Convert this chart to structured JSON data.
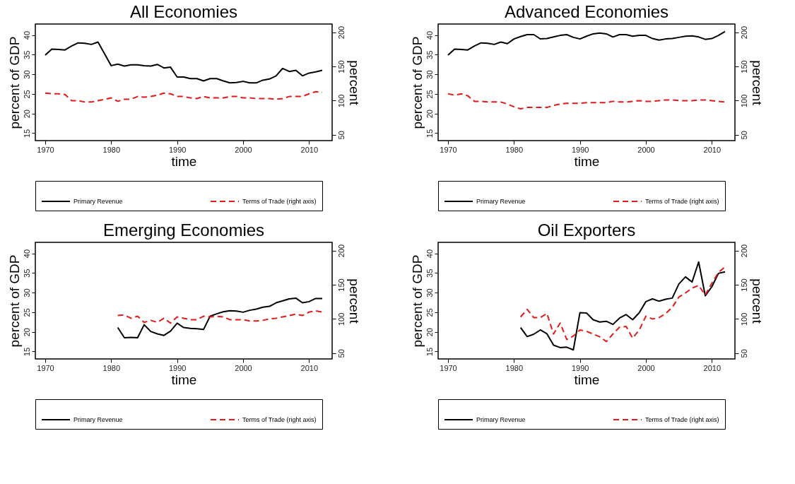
{
  "chart_data": [
    {
      "type": "line",
      "title": "All Economies",
      "xlabel": "time",
      "ylabel": "percent of GDP",
      "y2label": "percent",
      "xlim": [
        1968.5,
        2013.5
      ],
      "xticks": [
        1970,
        1980,
        1990,
        2000,
        2010
      ],
      "ylim": [
        13.1,
        42.8
      ],
      "yticks": [
        15,
        20,
        25,
        30,
        35,
        40
      ],
      "y2lim": [
        41.6,
        211.9
      ],
      "y2ticks": [
        50,
        100,
        150,
        200
      ],
      "legend": "bottom",
      "grid": false,
      "x": [
        1970,
        1971,
        1972,
        1973,
        1974,
        1975,
        1976,
        1977,
        1978,
        1979,
        1980,
        1981,
        1982,
        1983,
        1984,
        1985,
        1986,
        1987,
        1988,
        1989,
        1990,
        1991,
        1992,
        1993,
        1994,
        1995,
        1996,
        1997,
        1998,
        1999,
        2000,
        2001,
        2002,
        2003,
        2004,
        2005,
        2006,
        2007,
        2008,
        2009,
        2010,
        2011,
        2012
      ],
      "series": [
        {
          "name": "Primary Revenue",
          "color": "#000000",
          "line_style": "solid",
          "values": [
            34.9,
            36.4,
            36.3,
            36.2,
            37.2,
            38.0,
            37.9,
            37.6,
            38.2,
            35.2,
            32.2,
            32.6,
            32.1,
            32.4,
            32.4,
            32.2,
            32.1,
            32.5,
            31.6,
            31.8,
            29.3,
            29.3,
            28.9,
            28.9,
            28.3,
            28.9,
            28.9,
            28.3,
            27.8,
            27.9,
            28.2,
            27.8,
            27.8,
            28.5,
            28.8,
            29.6,
            31.5,
            30.7,
            31.0,
            29.6,
            30.3,
            30.6,
            31.0
          ]
        },
        {
          "name": "Terms of Trade (right axis)",
          "color": "#e31a1c",
          "line_style": "dashed",
          "axis": "y2",
          "values": [
            111,
            110,
            110,
            109,
            100,
            100,
            98,
            98,
            100,
            102,
            104,
            99,
            102,
            102,
            106,
            105,
            106,
            108,
            111,
            110,
            106,
            106,
            104,
            103,
            106,
            104,
            104,
            104,
            106,
            106,
            104,
            104,
            103,
            103,
            103,
            102,
            103,
            106,
            106,
            106,
            110,
            113,
            112
          ]
        }
      ]
    },
    {
      "type": "line",
      "title": "Advanced Economies",
      "xlabel": "time",
      "ylabel": "percent of GDP",
      "y2label": "percent",
      "xlim": [
        1968.5,
        2013.5
      ],
      "xticks": [
        1970,
        1980,
        1990,
        2000,
        2010
      ],
      "ylim": [
        13.1,
        42.8
      ],
      "yticks": [
        15,
        20,
        25,
        30,
        35,
        40
      ],
      "y2lim": [
        41.6,
        211.9
      ],
      "y2ticks": [
        50,
        100,
        150,
        200
      ],
      "legend": "bottom",
      "grid": false,
      "x": [
        1970,
        1971,
        1972,
        1973,
        1974,
        1975,
        1976,
        1977,
        1978,
        1979,
        1980,
        1981,
        1982,
        1983,
        1984,
        1985,
        1986,
        1987,
        1988,
        1989,
        1990,
        1991,
        1992,
        1993,
        1994,
        1995,
        1996,
        1997,
        1998,
        1999,
        2000,
        2001,
        2002,
        2003,
        2004,
        2005,
        2006,
        2007,
        2008,
        2009,
        2010,
        2011,
        2012
      ],
      "series": [
        {
          "name": "Primary Revenue",
          "color": "#000000",
          "line_style": "solid",
          "values": [
            34.9,
            36.4,
            36.3,
            36.2,
            37.2,
            38.0,
            37.9,
            37.6,
            38.2,
            37.8,
            39.0,
            39.6,
            40.1,
            40.1,
            39.0,
            39.1,
            39.5,
            39.9,
            40.1,
            39.4,
            39.0,
            39.7,
            40.3,
            40.5,
            40.3,
            39.5,
            40.1,
            40.1,
            39.7,
            39.9,
            39.9,
            39.1,
            38.7,
            39.0,
            39.1,
            39.4,
            39.7,
            39.8,
            39.5,
            38.9,
            39.1,
            39.9,
            40.9
          ]
        },
        {
          "name": "Terms of Trade (right axis)",
          "color": "#e31a1c",
          "line_style": "dashed",
          "axis": "y2",
          "values": [
            110,
            108,
            110,
            107,
            99,
            99,
            98,
            98,
            98,
            95,
            91,
            88,
            90,
            90,
            90,
            90,
            93,
            95,
            96,
            96,
            96,
            97,
            97,
            97,
            97,
            99,
            98,
            98,
            99,
            100,
            99,
            99,
            100,
            101,
            101,
            100,
            100,
            100,
            101,
            101,
            100,
            99,
            98
          ]
        }
      ]
    },
    {
      "type": "line",
      "title": "Emerging Economies",
      "xlabel": "time",
      "ylabel": "percent of GDP",
      "y2label": "percent",
      "xlim": [
        1968.5,
        2013.5
      ],
      "xticks": [
        1970,
        1980,
        1990,
        2000,
        2010
      ],
      "ylim": [
        13.1,
        42.8
      ],
      "yticks": [
        15,
        20,
        25,
        30,
        35,
        40
      ],
      "y2lim": [
        41.6,
        211.9
      ],
      "y2ticks": [
        50,
        100,
        150,
        200
      ],
      "legend": "bottom",
      "grid": false,
      "x": [
        1981,
        1982,
        1983,
        1984,
        1985,
        1986,
        1987,
        1988,
        1989,
        1990,
        1991,
        1992,
        1993,
        1994,
        1995,
        1996,
        1997,
        1998,
        1999,
        2000,
        2001,
        2002,
        2003,
        2004,
        2005,
        2006,
        2007,
        2008,
        2009,
        2010,
        2011,
        2012
      ],
      "series": [
        {
          "name": "Primary Revenue",
          "color": "#000000",
          "line_style": "solid",
          "values": [
            21.1,
            18.5,
            18.6,
            18.5,
            21.8,
            20.1,
            19.5,
            19.1,
            20.2,
            22.2,
            21.1,
            20.9,
            20.8,
            20.6,
            24.0,
            24.6,
            25.1,
            25.4,
            25.3,
            25.0,
            25.5,
            25.8,
            26.3,
            26.5,
            27.4,
            27.9,
            28.4,
            28.6,
            27.4,
            27.7,
            28.5,
            28.5
          ]
        },
        {
          "name": "Terms of Trade (right axis)",
          "color": "#e31a1c",
          "line_style": "dashed",
          "axis": "y2",
          "values": [
            105,
            106,
            101,
            104,
            95,
            98,
            95,
            101,
            94,
            103,
            101,
            99,
            99,
            104,
            103,
            104,
            103,
            99,
            99,
            99,
            97,
            97,
            98,
            100,
            101,
            103,
            105,
            107,
            105,
            110,
            112,
            110
          ]
        }
      ]
    },
    {
      "type": "line",
      "title": "Oil Exporters",
      "xlabel": "time",
      "ylabel": "percent of GDP",
      "y2label": "percent",
      "xlim": [
        1968.5,
        2013.5
      ],
      "xticks": [
        1970,
        1980,
        1990,
        2000,
        2010
      ],
      "ylim": [
        13.1,
        42.8
      ],
      "yticks": [
        15,
        20,
        25,
        30,
        35,
        40
      ],
      "y2lim": [
        41.6,
        211.9
      ],
      "y2ticks": [
        50,
        100,
        150,
        200
      ],
      "legend": "bottom",
      "grid": false,
      "x": [
        1981,
        1982,
        1983,
        1984,
        1985,
        1986,
        1987,
        1988,
        1989,
        1990,
        1991,
        1992,
        1993,
        1994,
        1995,
        1996,
        1997,
        1998,
        1999,
        2000,
        2001,
        2002,
        2003,
        2004,
        2005,
        2006,
        2007,
        2008,
        2009,
        2010,
        2011,
        2012
      ],
      "series": [
        {
          "name": "Primary Revenue",
          "color": "#000000",
          "line_style": "solid",
          "values": [
            21.1,
            18.8,
            19.4,
            20.5,
            19.5,
            16.6,
            16.0,
            16.1,
            15.4,
            24.9,
            24.8,
            23.1,
            22.5,
            22.7,
            21.9,
            23.5,
            24.4,
            23.1,
            24.9,
            27.7,
            28.4,
            27.8,
            28.3,
            28.6,
            32.2,
            34.0,
            32.7,
            37.8,
            29.2,
            31.5,
            34.9,
            35.3
          ]
        },
        {
          "name": "Terms of Trade (right axis)",
          "color": "#e31a1c",
          "line_style": "dashed",
          "axis": "y2",
          "values": [
            103,
            114,
            102,
            102,
            108,
            78,
            94,
            70,
            75,
            84,
            82,
            78,
            74,
            67,
            78,
            88,
            89,
            72,
            84,
            104,
            100,
            102,
            108,
            117,
            132,
            138,
            145,
            149,
            135,
            152,
            168,
            176
          ]
        }
      ]
    }
  ]
}
